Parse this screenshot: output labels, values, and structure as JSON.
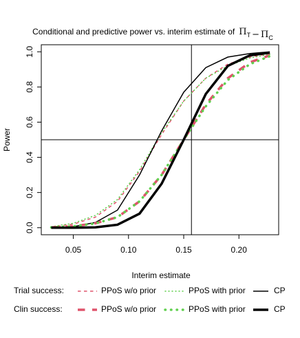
{
  "chart_data": {
    "type": "line",
    "title": "Conditional and predictive power vs. interim estimate of",
    "title_expression": [
      {
        "text": "Π",
        "sub": "T"
      },
      {
        "text": "−"
      },
      {
        "text": "Π",
        "sub": "C"
      }
    ],
    "x_label": "Interim estimate",
    "y_label": "Power",
    "x": [
      0.03,
      0.05,
      0.07,
      0.09,
      0.11,
      0.13,
      0.15,
      0.17,
      0.19,
      0.21,
      0.228
    ],
    "series": [
      {
        "name": "PPoS w/o prior",
        "row": 0,
        "color": "#DF536B",
        "width": 1.5,
        "dash": "dashed",
        "values": [
          0.005,
          0.02,
          0.06,
          0.15,
          0.32,
          0.53,
          0.72,
          0.85,
          0.93,
          0.97,
          0.99
        ]
      },
      {
        "name": "PPoS with prior",
        "row": 0,
        "color": "#61D04F",
        "width": 1.5,
        "dash": "dotted",
        "values": [
          0.006,
          0.025,
          0.07,
          0.16,
          0.33,
          0.54,
          0.72,
          0.85,
          0.92,
          0.965,
          0.985
        ]
      },
      {
        "name": "CP",
        "row": 0,
        "color": "#000000",
        "width": 1.5,
        "dash": "solid",
        "values": [
          0.001,
          0.006,
          0.03,
          0.1,
          0.3,
          0.55,
          0.77,
          0.91,
          0.97,
          0.99,
          1.0
        ]
      },
      {
        "name": "PPoS w/o prior",
        "row": 1,
        "color": "#DF536B",
        "width": 3.5,
        "dash": "dashed",
        "values": [
          0.002,
          0.008,
          0.025,
          0.06,
          0.15,
          0.3,
          0.5,
          0.7,
          0.85,
          0.94,
          0.98
        ]
      },
      {
        "name": "PPoS with prior",
        "row": 1,
        "color": "#61D04F",
        "width": 3.5,
        "dash": "dotted",
        "values": [
          0.002,
          0.008,
          0.024,
          0.06,
          0.15,
          0.3,
          0.5,
          0.69,
          0.84,
          0.93,
          0.975
        ]
      },
      {
        "name": "CP",
        "row": 1,
        "color": "#000000",
        "width": 3.5,
        "dash": "solid",
        "values": [
          0.0,
          0.0,
          0.002,
          0.017,
          0.08,
          0.25,
          0.5,
          0.76,
          0.92,
          0.98,
          0.995
        ]
      }
    ],
    "legend_rows": [
      "Trial success:",
      "Clin success:"
    ],
    "xlim": [
      0.021,
      0.236
    ],
    "ylim": [
      -0.04,
      1.04
    ],
    "xticks": [
      0.05,
      {
        "value": 0.1,
        "label": "0.10"
      },
      0.15,
      {
        "value": 0.2,
        "label": "0.20"
      }
    ],
    "yticks": [
      {
        "value": 0,
        "label": "0.0"
      },
      0.2,
      0.4,
      0.6,
      0.8,
      {
        "value": 1,
        "label": "1.0"
      }
    ],
    "vline": 0.157,
    "hline": 0.5
  }
}
